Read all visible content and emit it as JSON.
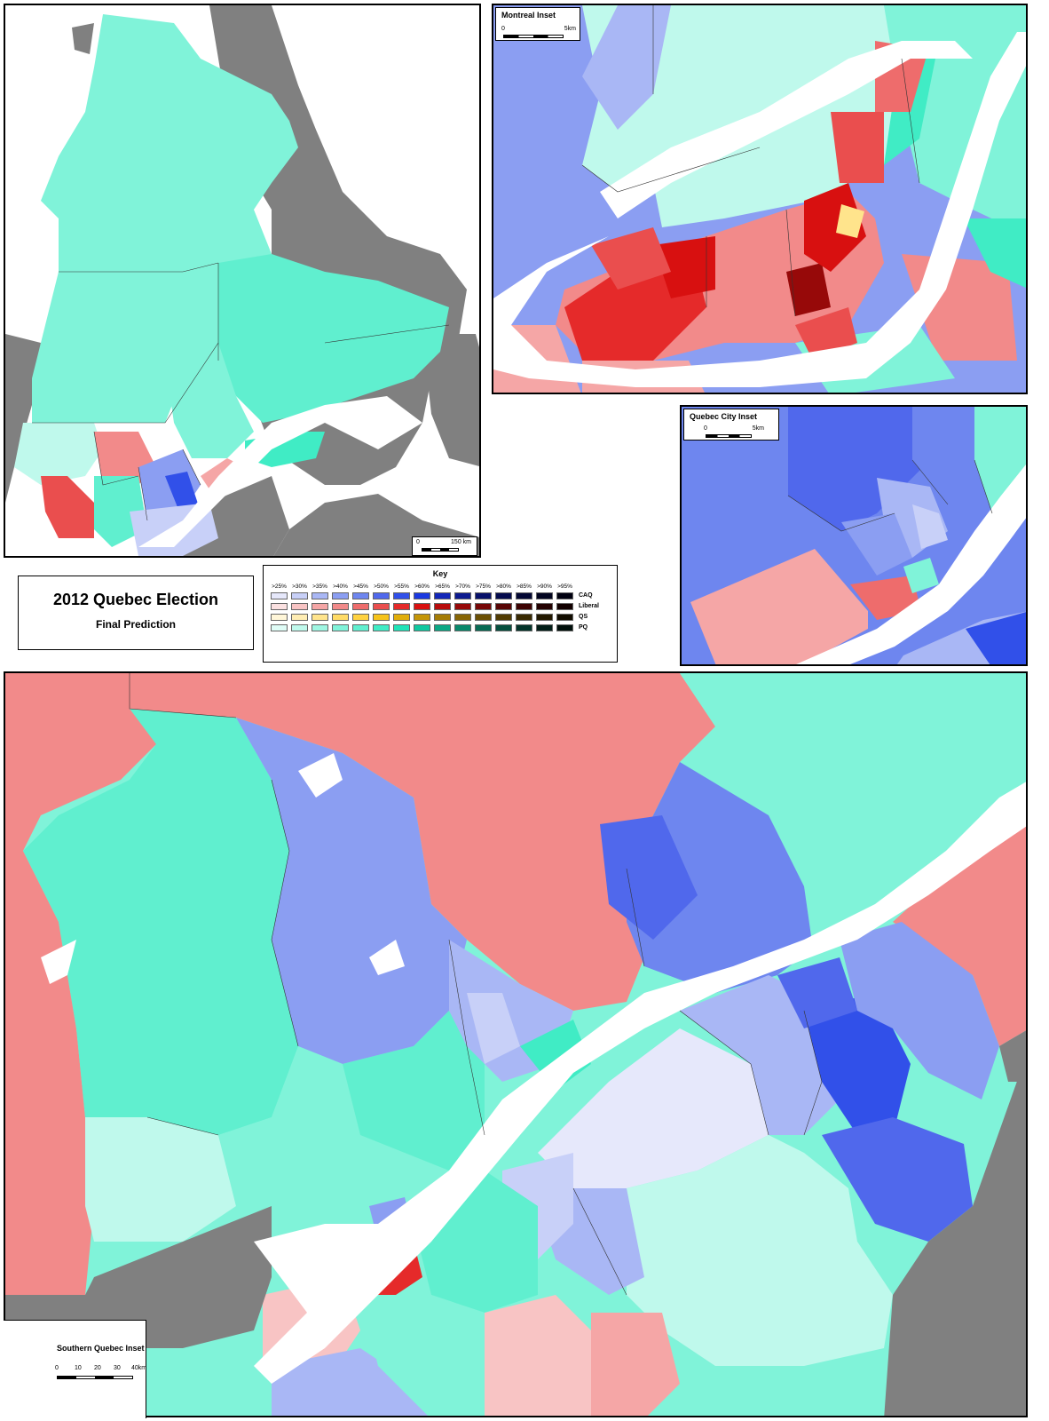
{
  "title": {
    "main": "2012 Quebec Election",
    "sub": "Final Prediction"
  },
  "key": {
    "heading": "Key",
    "thresholds": [
      ">25%",
      ">30%",
      ">35%",
      ">40%",
      ">45%",
      ">50%",
      ">55%",
      ">60%",
      ">65%",
      ">70%",
      ">75%",
      ">80%",
      ">85%",
      ">90%",
      ">95%"
    ],
    "parties": [
      {
        "name": "CAQ",
        "colors": [
          "#e6e8fb",
          "#c8d0f8",
          "#a9b7f5",
          "#8b9ef2",
          "#6e86ef",
          "#5068ec",
          "#3150e9",
          "#1a38e0",
          "#1226b8",
          "#0c1a8f",
          "#07106a",
          "#050b4d",
          "#030733",
          "#02041f",
          "#00000f"
        ]
      },
      {
        "name": "Liberal",
        "colors": [
          "#fbe1e1",
          "#f8c4c4",
          "#f5a6a6",
          "#f28a8a",
          "#ee6c6c",
          "#ea4e4e",
          "#e52a2a",
          "#d81010",
          "#b80c0c",
          "#970909",
          "#770707",
          "#580505",
          "#3d0303",
          "#240202",
          "#120000"
        ]
      },
      {
        "name": "QS",
        "colors": [
          "#fff6d8",
          "#ffedb3",
          "#ffe48c",
          "#ffdb66",
          "#ffd240",
          "#f6c31a",
          "#e0ad0a",
          "#c49507",
          "#a57c05",
          "#876504",
          "#6b4f03",
          "#513b02",
          "#382901",
          "#221800",
          "#110c00"
        ]
      },
      {
        "name": "PQ",
        "colors": [
          "#dffcf6",
          "#bff9ec",
          "#9ff6e2",
          "#80f3d9",
          "#60efcf",
          "#40ecc5",
          "#20e3b8",
          "#10c8a0",
          "#0ca885",
          "#09896c",
          "#076b54",
          "#054f3e",
          "#03342a",
          "#021e18",
          "#000f0b"
        ]
      }
    ]
  },
  "insets": {
    "montreal": {
      "label": "Montreal Inset",
      "scale_start": "0",
      "scale_end": "5km"
    },
    "quebec_city": {
      "label": "Quebec City Inset",
      "scale_start": "0",
      "scale_end": "5km"
    },
    "southern": {
      "label": "Southern Quebec Inset",
      "scale_ticks": [
        "0",
        "10",
        "20",
        "30",
        "40km"
      ]
    },
    "province": {
      "scale_start": "0",
      "scale_end": "150 km"
    }
  }
}
